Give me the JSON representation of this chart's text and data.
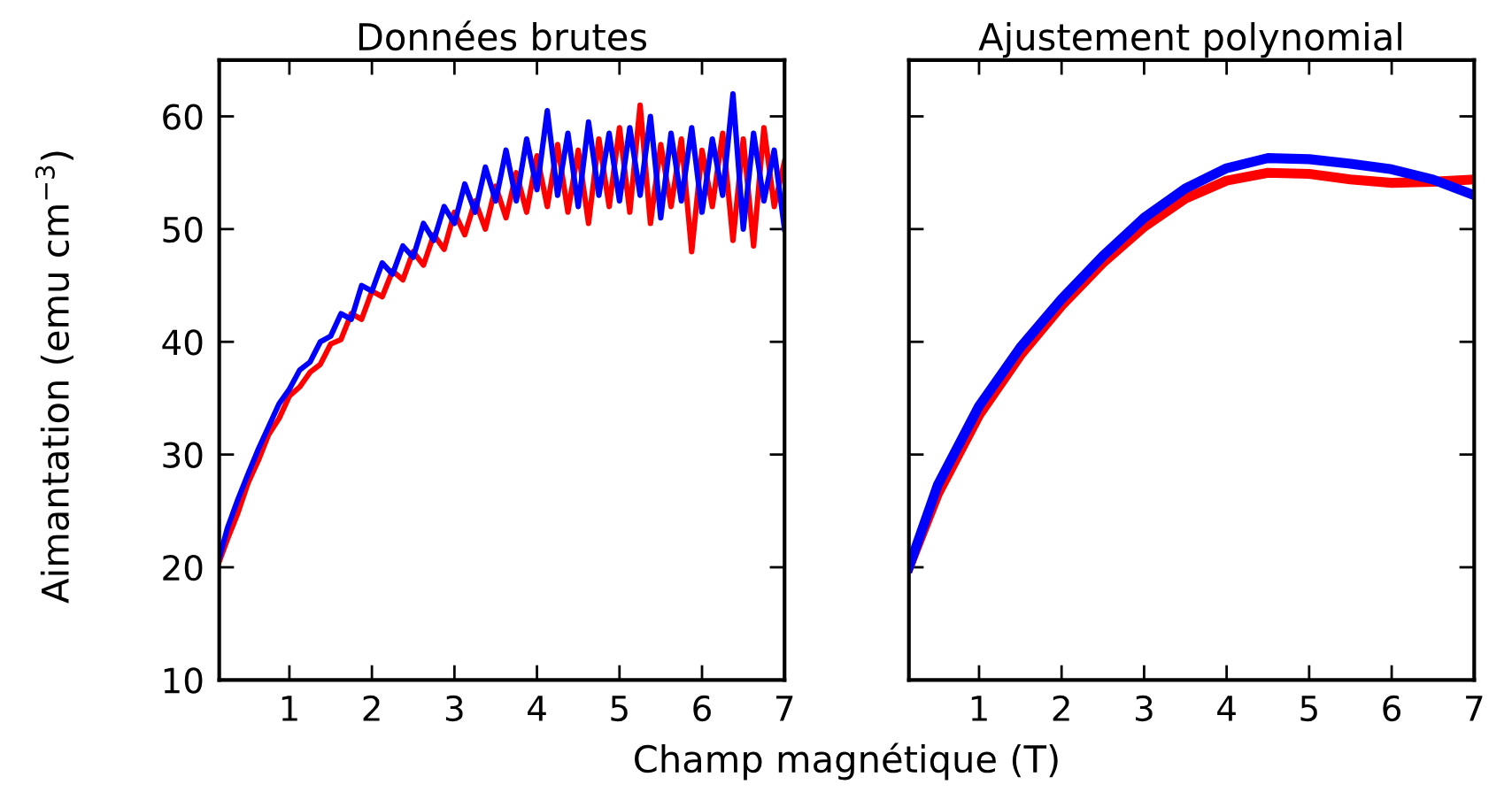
{
  "chart_data": [
    {
      "type": "line",
      "title": "Données brutes",
      "xlabel": "Champ magnétique (T)",
      "ylabel": "Aimantation (emu cm$^{−3}$)",
      "xlim": [
        0.15,
        7
      ],
      "ylim": [
        10,
        65
      ],
      "xticks": [
        1,
        2,
        3,
        4,
        5,
        6,
        7
      ],
      "yticks": [
        10,
        20,
        30,
        40,
        50,
        60
      ],
      "grid": false,
      "legend": false,
      "marker": "none",
      "line_style": "solid",
      "x": [
        0.15,
        0.25,
        0.375,
        0.5,
        0.625,
        0.75,
        0.875,
        1.0,
        1.125,
        1.25,
        1.375,
        1.5,
        1.625,
        1.75,
        1.875,
        2.0,
        2.125,
        2.25,
        2.375,
        2.5,
        2.625,
        2.75,
        2.875,
        3.0,
        3.125,
        3.25,
        3.375,
        3.5,
        3.625,
        3.75,
        3.875,
        4.0,
        4.125,
        4.25,
        4.375,
        4.5,
        4.625,
        4.75,
        4.875,
        5.0,
        5.125,
        5.25,
        5.375,
        5.5,
        5.625,
        5.75,
        5.875,
        6.0,
        6.125,
        6.25,
        6.375,
        6.5,
        6.625,
        6.75,
        6.875,
        7.0
      ],
      "series": [
        {
          "color": "#ff0000",
          "values": [
            20.5,
            22.5,
            24.8,
            27.5,
            29.5,
            31.8,
            33.2,
            35.2,
            36.0,
            37.3,
            38.0,
            39.8,
            40.2,
            42.5,
            42.0,
            44.5,
            44.0,
            46.3,
            45.5,
            48.0,
            46.8,
            49.5,
            48.2,
            51.5,
            49.5,
            52.5,
            50.0,
            53.8,
            51.0,
            55.0,
            51.5,
            56.5,
            52.0,
            57.5,
            51.5,
            57.0,
            50.5,
            58.0,
            52.0,
            59.0,
            51.5,
            61.0,
            50.5,
            57.5,
            52.0,
            58.0,
            48.0,
            57.0,
            52.0,
            58.5,
            49.0,
            58.0,
            48.5,
            59.0,
            52.0,
            56.0
          ]
        },
        {
          "color": "#0000ff",
          "values": [
            20.8,
            23.5,
            26.0,
            28.3,
            30.5,
            32.5,
            34.5,
            35.8,
            37.5,
            38.2,
            40.0,
            40.5,
            42.5,
            42.0,
            45.0,
            44.5,
            47.0,
            46.0,
            48.5,
            47.5,
            50.5,
            49.0,
            52.0,
            50.5,
            54.0,
            51.5,
            55.5,
            52.5,
            57.0,
            52.5,
            58.0,
            53.5,
            60.5,
            53.0,
            58.5,
            52.0,
            59.5,
            53.0,
            58.5,
            52.5,
            59.0,
            53.0,
            60.0,
            51.0,
            58.5,
            52.5,
            59.0,
            51.5,
            58.0,
            53.0,
            62.0,
            50.0,
            58.5,
            52.5,
            57.0,
            50.0
          ]
        }
      ]
    },
    {
      "type": "line",
      "title": "Ajustement polynomial",
      "xlim": [
        0.15,
        7
      ],
      "ylim": [
        10,
        65
      ],
      "xticks": [
        1,
        2,
        3,
        4,
        5,
        6,
        7
      ],
      "yticks": [
        10,
        20,
        30,
        40,
        50,
        60
      ],
      "tick_labels": "x",
      "grid": false,
      "legend": false,
      "marker": "none",
      "line_style": "solid",
      "x": [
        0.15,
        0.5,
        1,
        1.5,
        2,
        2.5,
        3,
        3.5,
        4,
        4.5,
        5,
        5.5,
        6,
        6.5,
        7
      ],
      "series": [
        {
          "color": "#ff0000",
          "values": [
            20,
            26.5,
            33.5,
            38.8,
            43.2,
            47,
            50.2,
            52.7,
            54.3,
            55,
            54.9,
            54.4,
            54.1,
            54.2,
            54.4
          ]
        },
        {
          "color": "#0000ff",
          "values": [
            20,
            27.3,
            34.3,
            39.5,
            43.8,
            47.6,
            51,
            53.6,
            55.4,
            56.3,
            56.2,
            55.8,
            55.3,
            54.4,
            53.0
          ]
        }
      ]
    }
  ]
}
